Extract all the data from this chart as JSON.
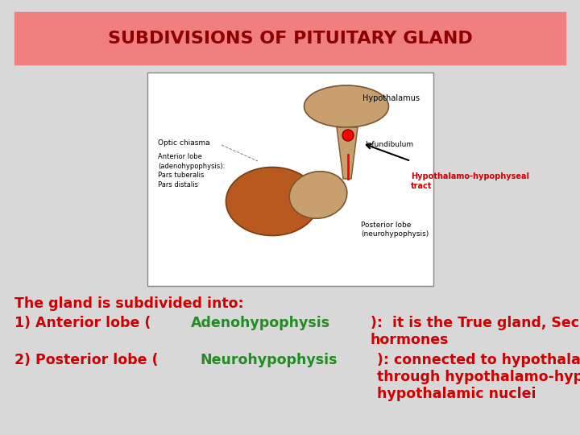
{
  "title": "SUBDIVISIONS OF PITUITARY GLAND",
  "title_bg": "#F08080",
  "title_color": "#8B0000",
  "bg_color": "#F5F5F5",
  "slide_bg": "#D8D8D8",
  "text_line1": "The gland is subdivided into:",
  "text_line1_color": "#CC0000",
  "text_line2a": "1) Anterior lobe (",
  "text_line2b": "Adenohypophysis",
  "text_line2c": "):  it is the True gland, Secretes\nhormones",
  "text_line2_color": "#CC0000",
  "text_line2b_color": "#228B22",
  "text_line3a": "2) Posterior lobe (",
  "text_line3b": "Neurohypophysis",
  "text_line3c": "): connected to hypothalamus\nthrough hypothalamo-hypophyseal tract, Stores hormones secreted by\nhypothalamic nuclei",
  "text_line3_color": "#CC0000",
  "text_line3b_color": "#228B22",
  "annotation_text": "Hypothalamo-hypophyseal\ntract",
  "annotation_color": "#CC0000",
  "font_size_title": 16,
  "font_size_body": 12.5
}
